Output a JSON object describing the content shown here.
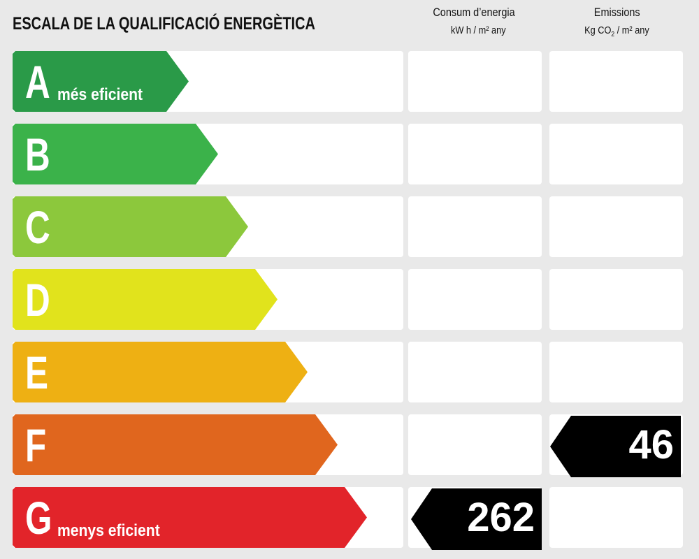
{
  "header": {
    "title": "ESCALA DE LA QUALIFICACIÓ ENERGÈTICA",
    "energy_col": {
      "title": "Consum d’energia",
      "unit": "kW h / m² any"
    },
    "emissions_col": {
      "title": "Emissions",
      "unit_prefix": "Kg CO",
      "unit_sub": "2",
      "unit_suffix": " / m² any"
    }
  },
  "ratings": [
    {
      "letter": "A",
      "label": "més eficient",
      "color": "#2a9a48"
    },
    {
      "letter": "B",
      "label": "",
      "color": "#3bb24a"
    },
    {
      "letter": "C",
      "label": "",
      "color": "#8cc83c"
    },
    {
      "letter": "D",
      "label": "",
      "color": "#e1e31c"
    },
    {
      "letter": "E",
      "label": "",
      "color": "#eeb013"
    },
    {
      "letter": "F",
      "label": "",
      "color": "#e0661e"
    },
    {
      "letter": "G",
      "label": "menys eficient",
      "color": "#e2242a"
    }
  ],
  "energy_consumption": {
    "value": "262",
    "rating": "G"
  },
  "emissions": {
    "value": "46",
    "rating": "F"
  }
}
